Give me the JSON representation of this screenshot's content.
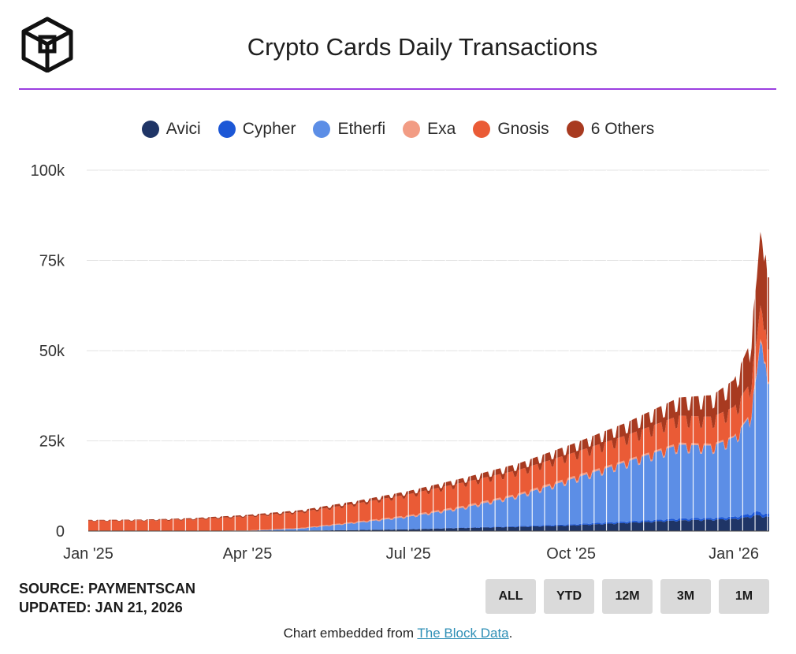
{
  "header": {
    "logo_name": "the-block-cube-logo",
    "title": "Crypto Cards Daily Transactions"
  },
  "legend": [
    {
      "label": "Avici",
      "color": "#1f3566"
    },
    {
      "label": "Cypher",
      "color": "#1c57d6"
    },
    {
      "label": "Etherfi",
      "color": "#5c8ee6"
    },
    {
      "label": "Exa",
      "color": "#f29c84"
    },
    {
      "label": "Gnosis",
      "color": "#ea5b36"
    },
    {
      "label": "6 Others",
      "color": "#a83a20"
    }
  ],
  "footer": {
    "source": "SOURCE: PAYMENTSCAN",
    "updated": "UPDATED: JAN 21, 2026",
    "embed_prefix": "Chart embedded from ",
    "embed_link": "The Block Data",
    "embed_suffix": "."
  },
  "range_buttons": [
    "ALL",
    "YTD",
    "12M",
    "3M",
    "1M"
  ],
  "chart_data": {
    "type": "area",
    "stacked": true,
    "title": "Crypto Cards Daily Transactions",
    "y_tick_labels": [
      "0",
      "25k",
      "50k",
      "75k",
      "100k"
    ],
    "y_ticks": [
      0,
      25000,
      50000,
      75000,
      100000
    ],
    "ylim": [
      0,
      100000
    ],
    "x_tick_labels": [
      "Jan '25",
      "Apr '25",
      "Jul '25",
      "Oct '25",
      "Jan '26"
    ],
    "x_ticks": [
      "2025-01-01",
      "2025-04-01",
      "2025-07-01",
      "2025-10-01",
      "2026-01-01"
    ],
    "xlim": [
      "2025-01-01",
      "2026-01-21"
    ],
    "grid": true,
    "legend_position": "top",
    "x": [
      "2025-01-01",
      "2025-02-01",
      "2025-03-01",
      "2025-04-01",
      "2025-05-01",
      "2025-06-01",
      "2025-07-01",
      "2025-08-01",
      "2025-09-01",
      "2025-10-01",
      "2025-11-01",
      "2025-12-01",
      "2025-12-20",
      "2026-01-01",
      "2026-01-10",
      "2026-01-14",
      "2026-01-17",
      "2026-01-20"
    ],
    "series": [
      {
        "name": "Avici",
        "values": [
          0,
          0,
          0,
          0,
          100,
          300,
          500,
          900,
          1200,
          1600,
          2300,
          3000,
          3200,
          3400,
          4000,
          4500,
          4200,
          4000
        ]
      },
      {
        "name": "Cypher",
        "values": [
          0,
          0,
          0,
          0,
          0,
          0,
          0,
          100,
          200,
          300,
          400,
          500,
          500,
          600,
          800,
          1000,
          900,
          800
        ]
      },
      {
        "name": "Etherfi",
        "values": [
          0,
          0,
          0,
          100,
          600,
          2000,
          3500,
          5500,
          8500,
          12500,
          16500,
          20500,
          20000,
          22000,
          27000,
          38000,
          52000,
          36000
        ]
      },
      {
        "name": "Exa",
        "values": [
          0,
          0,
          0,
          100,
          200,
          300,
          400,
          500,
          500,
          600,
          500,
          500,
          500,
          400,
          500,
          600,
          700,
          500
        ]
      },
      {
        "name": "Gnosis",
        "values": [
          2900,
          3000,
          3300,
          3900,
          4400,
          5000,
          5800,
          6500,
          6500,
          6500,
          6800,
          7500,
          7500,
          8000,
          8500,
          9000,
          9500,
          9000
        ]
      },
      {
        "name": "6 Others",
        "values": [
          200,
          200,
          300,
          400,
          500,
          700,
          900,
          1200,
          1800,
          2500,
          3500,
          5000,
          6000,
          7500,
          11000,
          17000,
          22000,
          20000
        ]
      }
    ]
  }
}
